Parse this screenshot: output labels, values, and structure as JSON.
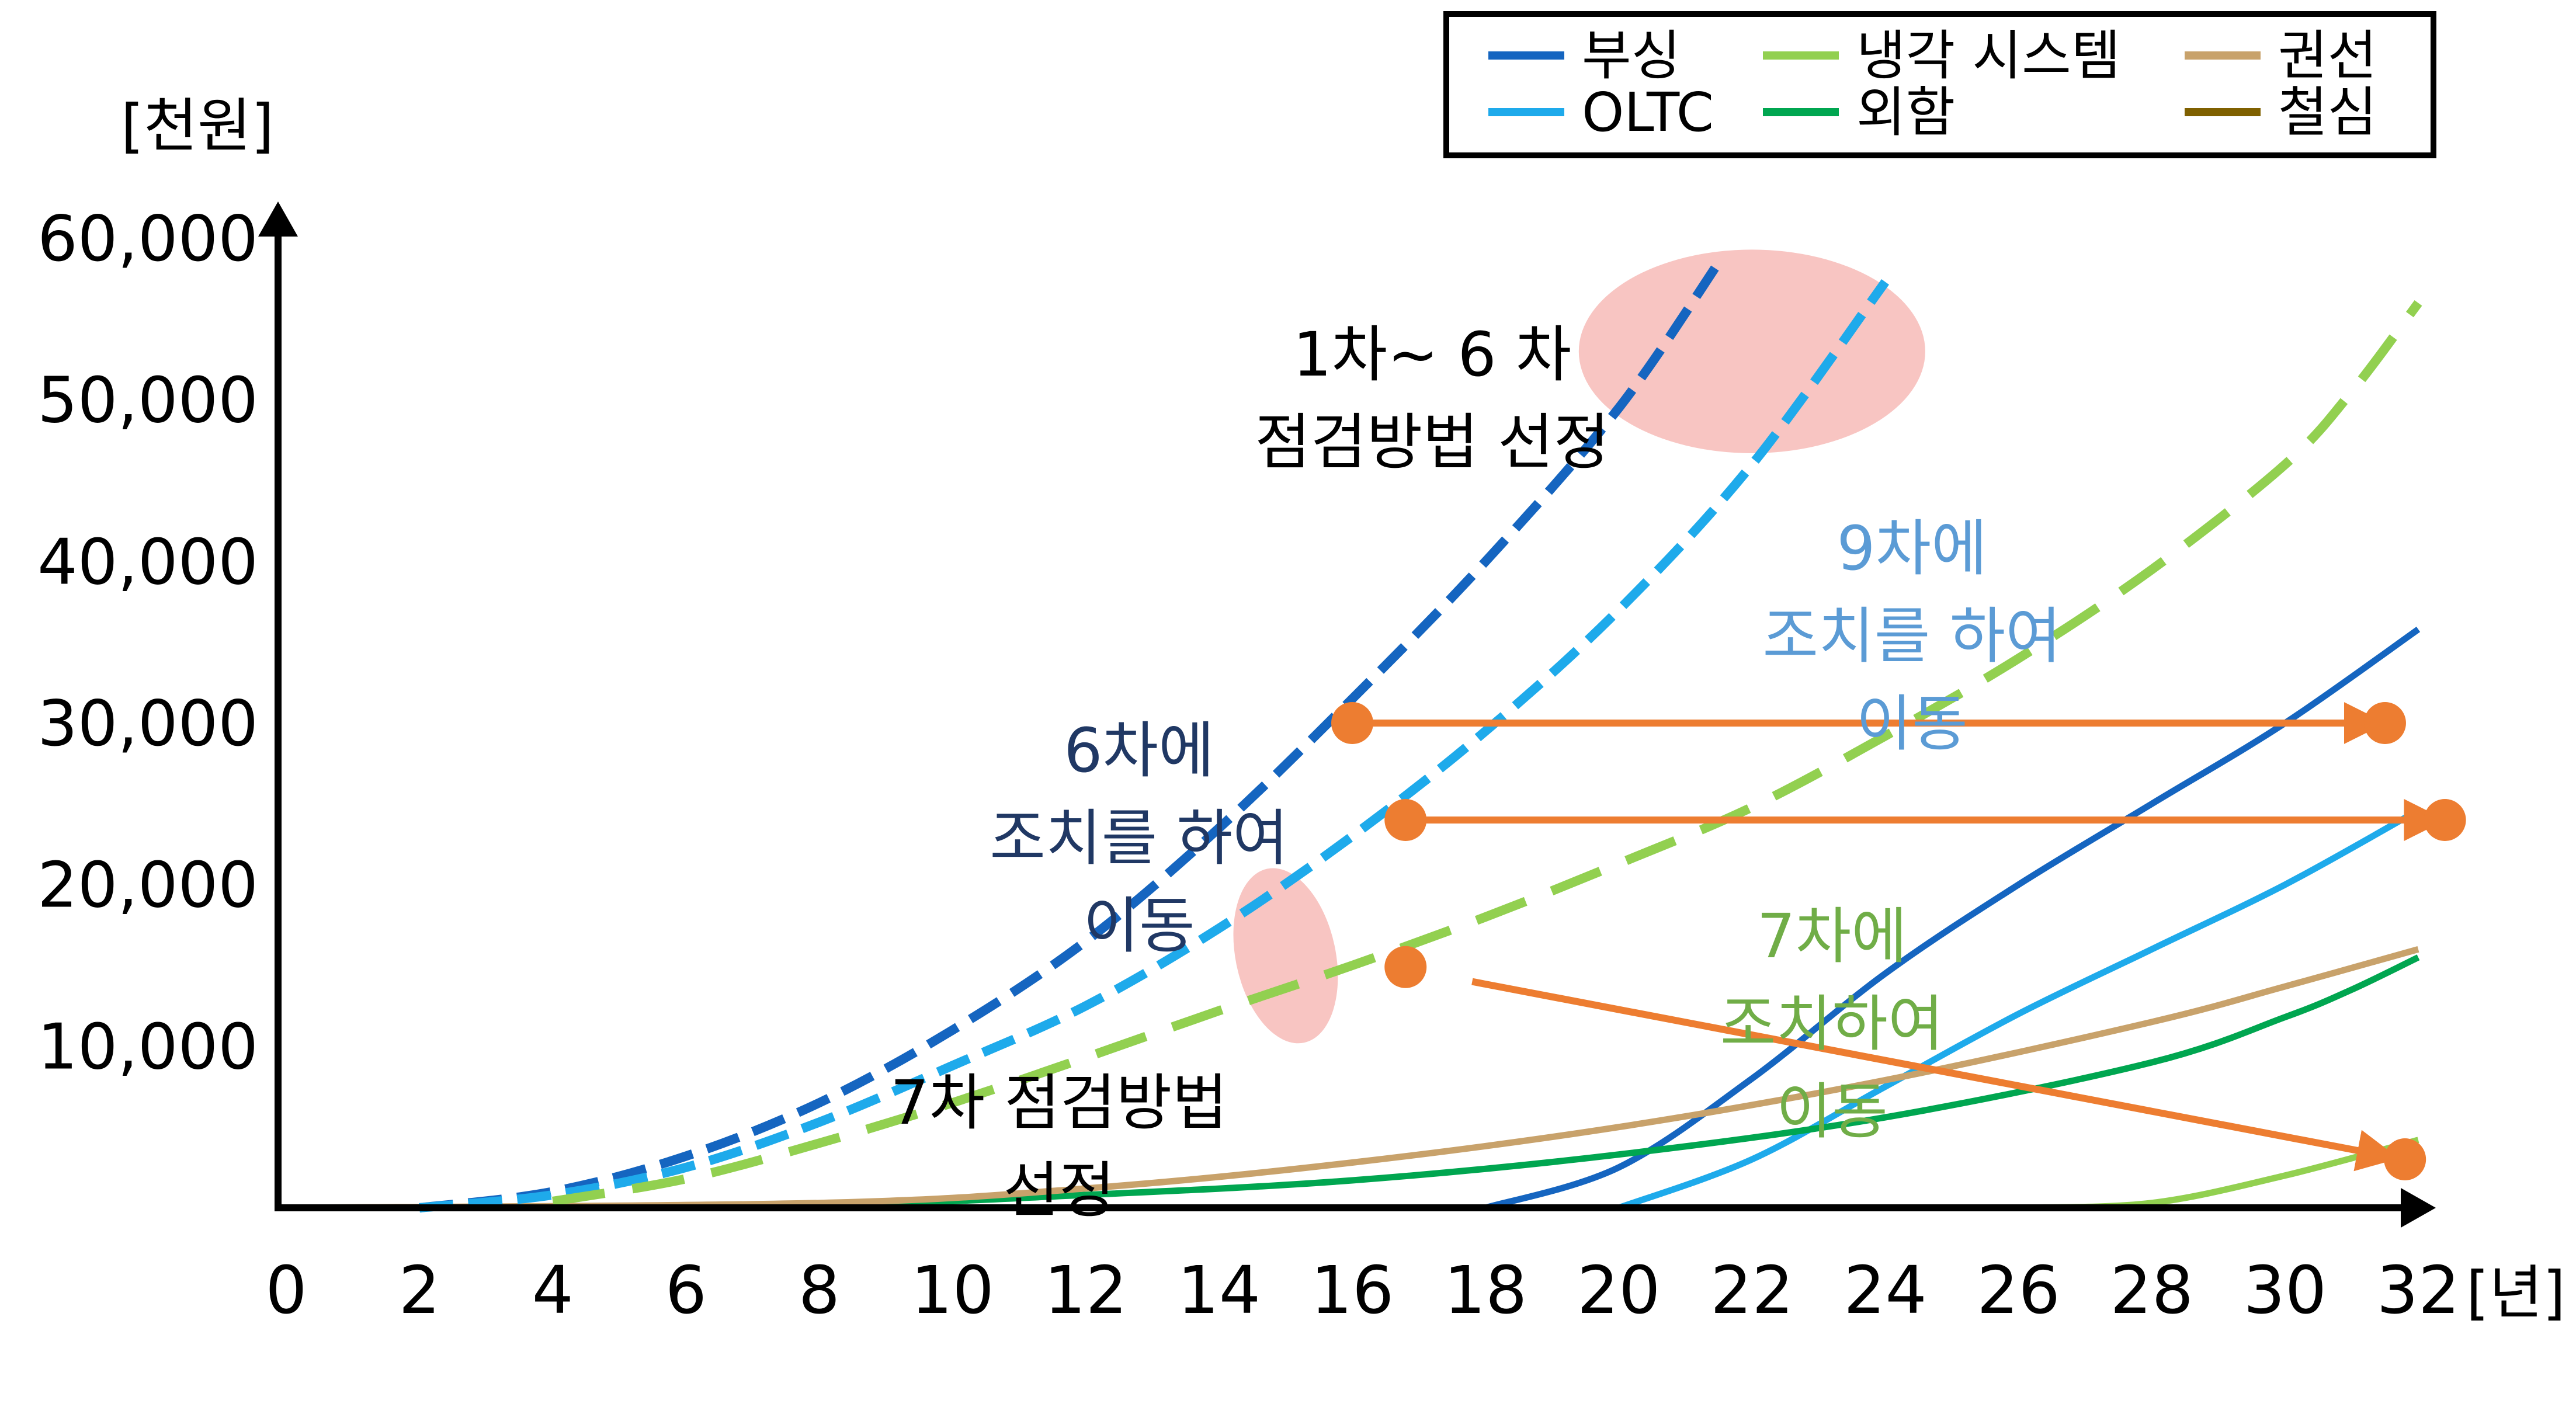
{
  "chart_data": {
    "type": "line",
    "title": "",
    "xlabel": "[년]",
    "ylabel": "[천원]",
    "xlim": [
      0,
      32
    ],
    "ylim": [
      0,
      60000
    ],
    "x_ticks": [
      "0",
      "2",
      "4",
      "6",
      "8",
      "10",
      "12",
      "14",
      "16",
      "18",
      "20",
      "22",
      "24",
      "26",
      "28",
      "30",
      "32"
    ],
    "y_ticks": [
      "10,000",
      "20,000",
      "30,000",
      "40,000",
      "50,000",
      "60,000"
    ],
    "y_tick_values": [
      10000,
      20000,
      30000,
      40000,
      50000,
      60000
    ],
    "legend": {
      "position": "top-right",
      "items": [
        {
          "label": "부싱",
          "color": "#1565c0"
        },
        {
          "label": "OLTC",
          "color": "#1eaaeb"
        },
        {
          "label": "냉각 시스템",
          "color": "#92d050"
        },
        {
          "label": "외함",
          "color": "#00a650"
        },
        {
          "label": "권선",
          "color": "#c8a26b"
        },
        {
          "label": "철심",
          "color": "#7f6000"
        }
      ]
    },
    "series": [
      {
        "name": "부싱",
        "color": "#1565c0",
        "style": "solid",
        "points": [
          [
            18,
            0
          ],
          [
            20,
            2500
          ],
          [
            22,
            8000
          ],
          [
            24,
            14500
          ],
          [
            26,
            20000
          ],
          [
            28,
            25000
          ],
          [
            30,
            30000
          ],
          [
            32,
            35800
          ]
        ]
      },
      {
        "name": "OLTC",
        "color": "#1eaaeb",
        "style": "solid",
        "points": [
          [
            20,
            0
          ],
          [
            22,
            3000
          ],
          [
            24,
            7500
          ],
          [
            26,
            12000
          ],
          [
            28,
            16000
          ],
          [
            30,
            20000
          ],
          [
            32,
            24600
          ]
        ]
      },
      {
        "name": "냉각 시스템",
        "color": "#92d050",
        "style": "solid",
        "points": [
          [
            26,
            0
          ],
          [
            28,
            300
          ],
          [
            30,
            2000
          ],
          [
            32,
            4200
          ]
        ]
      },
      {
        "name": "외함",
        "color": "#00a650",
        "style": "solid",
        "points": [
          [
            0,
            0
          ],
          [
            8,
            200
          ],
          [
            12,
            800
          ],
          [
            16,
            1700
          ],
          [
            20,
            3300
          ],
          [
            24,
            5600
          ],
          [
            28,
            9000
          ],
          [
            30,
            11800
          ],
          [
            31,
            13500
          ],
          [
            32,
            15500
          ]
        ]
      },
      {
        "name": "권선",
        "color": "#c8a26b",
        "style": "solid",
        "points": [
          [
            0,
            0
          ],
          [
            8,
            300
          ],
          [
            12,
            1200
          ],
          [
            16,
            2800
          ],
          [
            20,
            5000
          ],
          [
            24,
            7900
          ],
          [
            28,
            11500
          ],
          [
            30,
            13700
          ],
          [
            32,
            16000
          ]
        ]
      },
      {
        "name": "부싱",
        "color": "#1565c0",
        "style": "dashed",
        "points": [
          [
            2,
            0
          ],
          [
            4,
            1000
          ],
          [
            6,
            3200
          ],
          [
            8,
            6500
          ],
          [
            10,
            11000
          ],
          [
            12,
            16500
          ],
          [
            14,
            23500
          ],
          [
            16,
            31500
          ],
          [
            18,
            40000
          ],
          [
            20,
            49500
          ],
          [
            21.5,
            58500
          ]
        ]
      },
      {
        "name": "OLTC",
        "color": "#1eaaeb",
        "style": "dashed",
        "points": [
          [
            2,
            0
          ],
          [
            4,
            800
          ],
          [
            6,
            2500
          ],
          [
            8,
            5300
          ],
          [
            10,
            8800
          ],
          [
            12,
            12500
          ],
          [
            14,
            17300
          ],
          [
            16,
            23000
          ],
          [
            18,
            29500
          ],
          [
            20,
            37000
          ],
          [
            22,
            46000
          ],
          [
            24,
            57300
          ]
        ]
      },
      {
        "name": "냉각 시스템",
        "color": "#92d050",
        "style": "dashed",
        "points": [
          [
            4,
            400
          ],
          [
            6,
            1800
          ],
          [
            8,
            4000
          ],
          [
            10,
            6500
          ],
          [
            12,
            9300
          ],
          [
            14,
            12200
          ],
          [
            16,
            15000
          ],
          [
            18,
            18000
          ],
          [
            20,
            21300
          ],
          [
            22,
            24800
          ],
          [
            24,
            29200
          ],
          [
            26,
            34000
          ],
          [
            28,
            39500
          ],
          [
            30,
            46000
          ],
          [
            31,
            50500
          ],
          [
            32,
            56000
          ]
        ]
      }
    ],
    "markers": [
      {
        "x": 16,
        "y": 30000,
        "color": "#ed7d31"
      },
      {
        "x": 31.5,
        "y": 30000,
        "color": "#ed7d31"
      },
      {
        "x": 16.8,
        "y": 24000,
        "color": "#ed7d31"
      },
      {
        "x": 32.4,
        "y": 24000,
        "color": "#ed7d31"
      },
      {
        "x": 16.8,
        "y": 14900,
        "color": "#ed7d31"
      },
      {
        "x": 31.8,
        "y": 3000,
        "color": "#ed7d31"
      }
    ],
    "arrows": [
      {
        "x1": 16.3,
        "y1": 30000,
        "x2": 31.2,
        "y2": 30000,
        "color": "#ed7d31"
      },
      {
        "x1": 17.1,
        "y1": 24000,
        "x2": 32.1,
        "y2": 24000,
        "color": "#ed7d31"
      },
      {
        "x1": 17.8,
        "y1": 14000,
        "x2": 31.4,
        "y2": 3300,
        "color": "#ed7d31"
      }
    ],
    "highlights": [
      {
        "cx": 22,
        "cy": 53000,
        "rx": 2.6,
        "ry": 6300,
        "rotate": 0
      },
      {
        "cx": 15,
        "cy": 15600,
        "rx": 0.75,
        "ry": 5500,
        "rotate": -12
      }
    ],
    "annotations": [
      {
        "lines": [
          "1차~ 6 차",
          "점검방법 선정"
        ],
        "x": 17.2,
        "y": 51500,
        "color": "#000000"
      },
      {
        "lines": [
          "9차에",
          "조치를 하여",
          "이동"
        ],
        "x": 24.4,
        "y": 39500,
        "color": "#5b9bd5"
      },
      {
        "lines": [
          "6차에",
          "조치를 하여",
          "이동"
        ],
        "x": 12.8,
        "y": 27000,
        "color": "#203864"
      },
      {
        "lines": [
          "7차에",
          "조치하여",
          "이동"
        ],
        "x": 23.2,
        "y": 15500,
        "color": "#70ad47"
      },
      {
        "lines": [
          "7차 점검방법",
          "선정"
        ],
        "x": 11.6,
        "y": 5200,
        "color": "#000000"
      }
    ]
  }
}
